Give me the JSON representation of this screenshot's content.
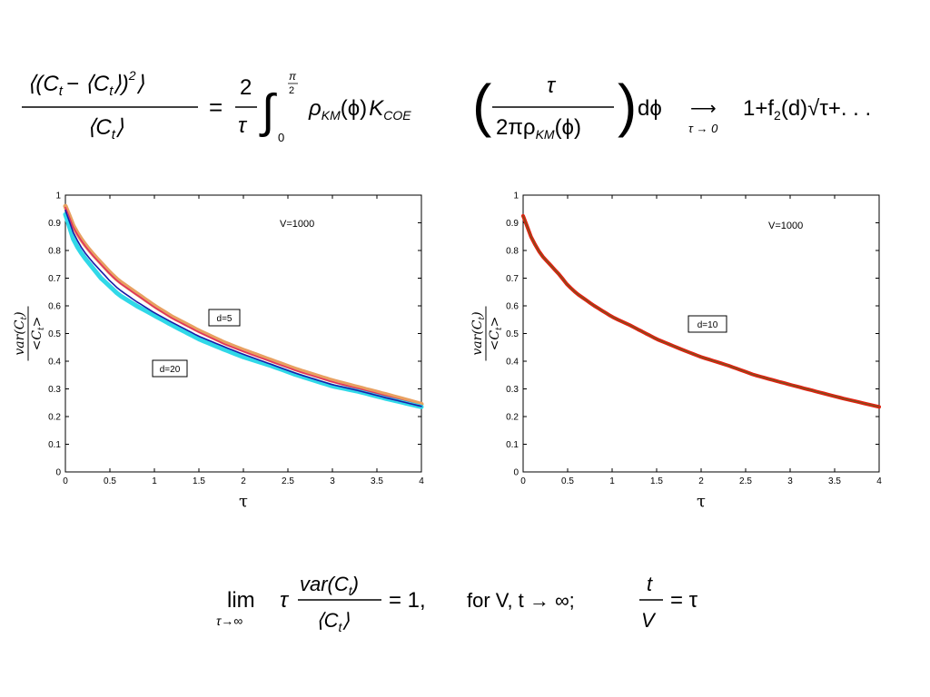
{
  "equations": {
    "top": {
      "lhs_num": "⟨(C",
      "lhs_num_rest": "− ⟨C",
      "lhs_den": "⟨C",
      "t": "t",
      "eq_sign": "=",
      "coef_num": "2",
      "coef_den": "τ",
      "int_upper": "π",
      "int_upper_den": "2",
      "int_lower": "0",
      "rho": "ρ",
      "km": "KM",
      "phi": "(ϕ)",
      "K": "K",
      "coe": "COE",
      "frac_num": "τ",
      "frac_den": "2πρ",
      "dphi": "dϕ",
      "arrow_sub": "τ → 0",
      "rhs": "1+f",
      "rhs_sub": "2",
      "rhs_rest": "(d)√τ+. . ."
    },
    "bottom": {
      "lim": "lim",
      "lim_sub": "τ→∞",
      "tau": "τ",
      "var_num": "var(C",
      "var_den": "⟨C",
      "t": "t",
      "eq_one": "= 1,",
      "for_text": "for V, t → ∞;",
      "t_num": "t",
      "V_den": "V",
      "eq_tau": "= τ"
    }
  },
  "chart_data": [
    {
      "type": "line",
      "xlim": [
        0,
        4
      ],
      "ylim": [
        0,
        1
      ],
      "xticks": [
        0,
        0.5,
        1,
        1.5,
        2,
        2.5,
        3,
        3.5,
        4
      ],
      "yticks": [
        0,
        0.1,
        0.2,
        0.3,
        0.4,
        0.5,
        0.6,
        0.7,
        0.8,
        0.9,
        1
      ],
      "xtick_labels": [
        "0",
        "0.5",
        "1",
        "1.5",
        "2",
        "2.5",
        "3",
        "3.5",
        "4"
      ],
      "ytick_labels": [
        "0",
        "0.1",
        "0.2",
        "0.3",
        "0.4",
        "0.5",
        "0.6",
        "0.7",
        "0.8",
        "0.9",
        "1"
      ],
      "xlabel": "τ",
      "ylabel_num": "var(C",
      "ylabel_den": "<C",
      "ylabel_sub": "t",
      "annotation": "V=1000",
      "labels": [
        "d=5",
        "d=20"
      ],
      "grid": false,
      "series": [
        {
          "color": "#e8a060",
          "x": [
            0,
            0.1,
            0.2,
            0.3,
            0.4,
            0.5,
            0.6,
            0.8,
            1.0,
            1.2,
            1.5,
            1.8,
            2.0,
            2.3,
            2.6,
            3.0,
            3.3,
            3.6,
            4.0
          ],
          "y": [
            0.96,
            0.88,
            0.83,
            0.79,
            0.755,
            0.72,
            0.69,
            0.645,
            0.6,
            0.56,
            0.51,
            0.465,
            0.44,
            0.405,
            0.37,
            0.33,
            0.305,
            0.28,
            0.245
          ]
        },
        {
          "color": "#e03060",
          "x": [
            0,
            0.1,
            0.2,
            0.3,
            0.4,
            0.5,
            0.6,
            0.8,
            1.0,
            1.2,
            1.5,
            1.8,
            2.0,
            2.3,
            2.6,
            3.0,
            3.3,
            3.6,
            4.0
          ],
          "y": [
            0.955,
            0.875,
            0.825,
            0.785,
            0.75,
            0.715,
            0.685,
            0.64,
            0.595,
            0.555,
            0.505,
            0.46,
            0.435,
            0.4,
            0.365,
            0.325,
            0.3,
            0.275,
            0.24
          ]
        },
        {
          "color": "#30d8e8",
          "x": [
            0,
            0.1,
            0.2,
            0.3,
            0.4,
            0.5,
            0.6,
            0.8,
            1.0,
            1.2,
            1.5,
            1.8,
            2.0,
            2.3,
            2.6,
            3.0,
            3.3,
            3.6,
            4.0
          ],
          "y": [
            0.93,
            0.83,
            0.78,
            0.74,
            0.7,
            0.67,
            0.64,
            0.6,
            0.565,
            0.53,
            0.48,
            0.44,
            0.415,
            0.385,
            0.35,
            0.31,
            0.29,
            0.265,
            0.235
          ]
        },
        {
          "color": "#1a1aa8",
          "x": [
            0,
            0.1,
            0.2,
            0.3,
            0.4,
            0.5,
            0.6,
            0.8,
            1.0,
            1.2,
            1.5,
            1.8,
            2.0,
            2.3,
            2.6,
            3.0,
            3.3,
            3.6,
            4.0
          ],
          "y": [
            0.945,
            0.855,
            0.8,
            0.76,
            0.725,
            0.69,
            0.66,
            0.615,
            0.575,
            0.54,
            0.49,
            0.45,
            0.425,
            0.39,
            0.355,
            0.315,
            0.293,
            0.268,
            0.237
          ]
        }
      ]
    },
    {
      "type": "line",
      "xlim": [
        0,
        4
      ],
      "ylim": [
        0,
        1
      ],
      "xticks": [
        0,
        0.5,
        1,
        1.5,
        2,
        2.5,
        3,
        3.5,
        4
      ],
      "yticks": [
        0,
        0.1,
        0.2,
        0.3,
        0.4,
        0.5,
        0.6,
        0.7,
        0.8,
        0.9,
        1
      ],
      "xtick_labels": [
        "0",
        "0.5",
        "1",
        "1.5",
        "2",
        "2.5",
        "3",
        "3.5",
        "4"
      ],
      "ytick_labels": [
        "0",
        "0.1",
        "0.2",
        "0.3",
        "0.4",
        "0.5",
        "0.6",
        "0.7",
        "0.8",
        "0.9",
        "1"
      ],
      "xlabel": "τ",
      "ylabel_num": "var(C",
      "ylabel_den": "<C",
      "ylabel_sub": "t",
      "annotation": "V=1000",
      "labels": [
        "d=10"
      ],
      "grid": false,
      "series": [
        {
          "color": "#e02010",
          "x": [
            0,
            0.1,
            0.2,
            0.3,
            0.4,
            0.5,
            0.6,
            0.8,
            1.0,
            1.2,
            1.5,
            1.8,
            2.0,
            2.3,
            2.6,
            3.0,
            3.3,
            3.6,
            4.0
          ],
          "y": [
            0.925,
            0.84,
            0.785,
            0.75,
            0.715,
            0.675,
            0.645,
            0.6,
            0.56,
            0.53,
            0.48,
            0.44,
            0.415,
            0.385,
            0.35,
            0.315,
            0.29,
            0.265,
            0.235
          ]
        },
        {
          "color": "#606020",
          "x": [
            0,
            0.1,
            0.2,
            0.3,
            0.4,
            0.5,
            0.6,
            0.8,
            1.0,
            1.2,
            1.5,
            1.8,
            2.0,
            2.3,
            2.6,
            3.0,
            3.3,
            3.6,
            4.0
          ],
          "y": [
            0.925,
            0.84,
            0.785,
            0.75,
            0.715,
            0.675,
            0.645,
            0.6,
            0.56,
            0.53,
            0.48,
            0.44,
            0.415,
            0.385,
            0.35,
            0.315,
            0.29,
            0.265,
            0.235
          ]
        }
      ]
    }
  ]
}
